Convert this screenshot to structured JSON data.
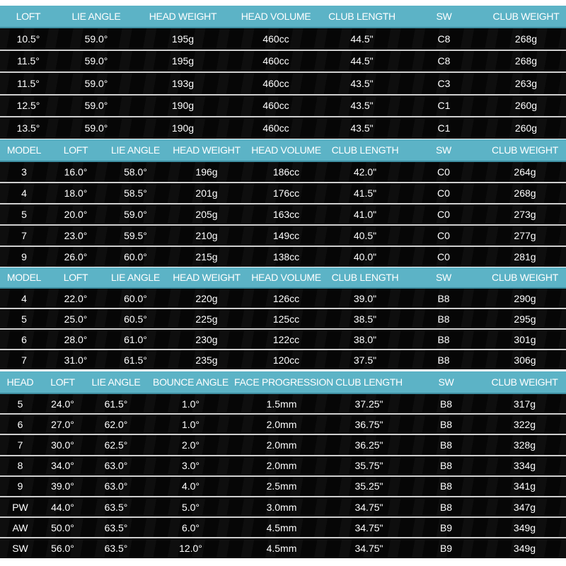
{
  "accent_color": "#5cb3c6",
  "sections": [
    {
      "headers": [
        "LOFT",
        "LIE ANGLE",
        "HEAD WEIGHT",
        "HEAD VOLUME",
        "CLUB LENGTH",
        "SW",
        "CLUB WEIGHT"
      ],
      "rows": [
        [
          "10.5°",
          "59.0°",
          "195g",
          "460cc",
          "44.5\"",
          "C8",
          "268g"
        ],
        [
          "11.5°",
          "59.0°",
          "195g",
          "460cc",
          "44.5\"",
          "C8",
          "268g"
        ],
        [
          "11.5°",
          "59.0°",
          "193g",
          "460cc",
          "43.5\"",
          "C3",
          "263g"
        ],
        [
          "12.5°",
          "59.0°",
          "190g",
          "460cc",
          "43.5\"",
          "C1",
          "260g"
        ],
        [
          "13.5°",
          "59.0°",
          "190g",
          "460cc",
          "43.5\"",
          "C1",
          "260g"
        ]
      ]
    },
    {
      "headers": [
        "MODEL",
        "LOFT",
        "LIE ANGLE",
        "HEAD WEIGHT",
        "HEAD VOLUME",
        "CLUB LENGTH",
        "SW",
        "CLUB WEIGHT"
      ],
      "rows": [
        [
          "3",
          "16.0°",
          "58.0°",
          "196g",
          "186cc",
          "42.0\"",
          "C0",
          "264g"
        ],
        [
          "4",
          "18.0°",
          "58.5°",
          "201g",
          "176cc",
          "41.5\"",
          "C0",
          "268g"
        ],
        [
          "5",
          "20.0°",
          "59.0°",
          "205g",
          "163cc",
          "41.0\"",
          "C0",
          "273g"
        ],
        [
          "7",
          "23.0°",
          "59.5°",
          "210g",
          "149cc",
          "40.5\"",
          "C0",
          "277g"
        ],
        [
          "9",
          "26.0°",
          "60.0°",
          "215g",
          "138cc",
          "40.0\"",
          "C0",
          "281g"
        ]
      ]
    },
    {
      "headers": [
        "MODEL",
        "LOFT",
        "LIE ANGLE",
        "HEAD WEIGHT",
        "HEAD VOLUME",
        "CLUB LENGTH",
        "SW",
        "CLUB WEIGHT"
      ],
      "rows": [
        [
          "4",
          "22.0°",
          "60.0°",
          "220g",
          "126cc",
          "39.0\"",
          "B8",
          "290g"
        ],
        [
          "5",
          "25.0°",
          "60.5°",
          "225g",
          "125cc",
          "38.5\"",
          "B8",
          "295g"
        ],
        [
          "6",
          "28.0°",
          "61.0°",
          "230g",
          "122cc",
          "38.0\"",
          "B8",
          "301g"
        ],
        [
          "7",
          "31.0°",
          "61.5°",
          "235g",
          "120cc",
          "37.5\"",
          "B8",
          "306g"
        ]
      ]
    },
    {
      "headers": [
        "HEAD",
        "LOFT",
        "LIE ANGLE",
        "BOUNCE ANGLE",
        "FACE PROGRESSION",
        "CLUB LENGTH",
        "SW",
        "CLUB WEIGHT"
      ],
      "rows": [
        [
          "5",
          "24.0°",
          "61.5°",
          "1.0°",
          "1.5mm",
          "37.25\"",
          "B8",
          "317g"
        ],
        [
          "6",
          "27.0°",
          "62.0°",
          "1.0°",
          "2.0mm",
          "36.75\"",
          "B8",
          "322g"
        ],
        [
          "7",
          "30.0°",
          "62.5°",
          "2.0°",
          "2.0mm",
          "36.25\"",
          "B8",
          "328g"
        ],
        [
          "8",
          "34.0°",
          "63.0°",
          "3.0°",
          "2.0mm",
          "35.75\"",
          "B8",
          "334g"
        ],
        [
          "9",
          "39.0°",
          "63.0°",
          "4.0°",
          "2.5mm",
          "35.25\"",
          "B8",
          "341g"
        ],
        [
          "PW",
          "44.0°",
          "63.5°",
          "5.0°",
          "3.0mm",
          "34.75\"",
          "B8",
          "347g"
        ],
        [
          "AW",
          "50.0°",
          "63.5°",
          "6.0°",
          "4.5mm",
          "34.75\"",
          "B9",
          "349g"
        ],
        [
          "SW",
          "56.0°",
          "63.5°",
          "12.0°",
          "4.5mm",
          "34.75\"",
          "B9",
          "349g"
        ]
      ]
    }
  ]
}
